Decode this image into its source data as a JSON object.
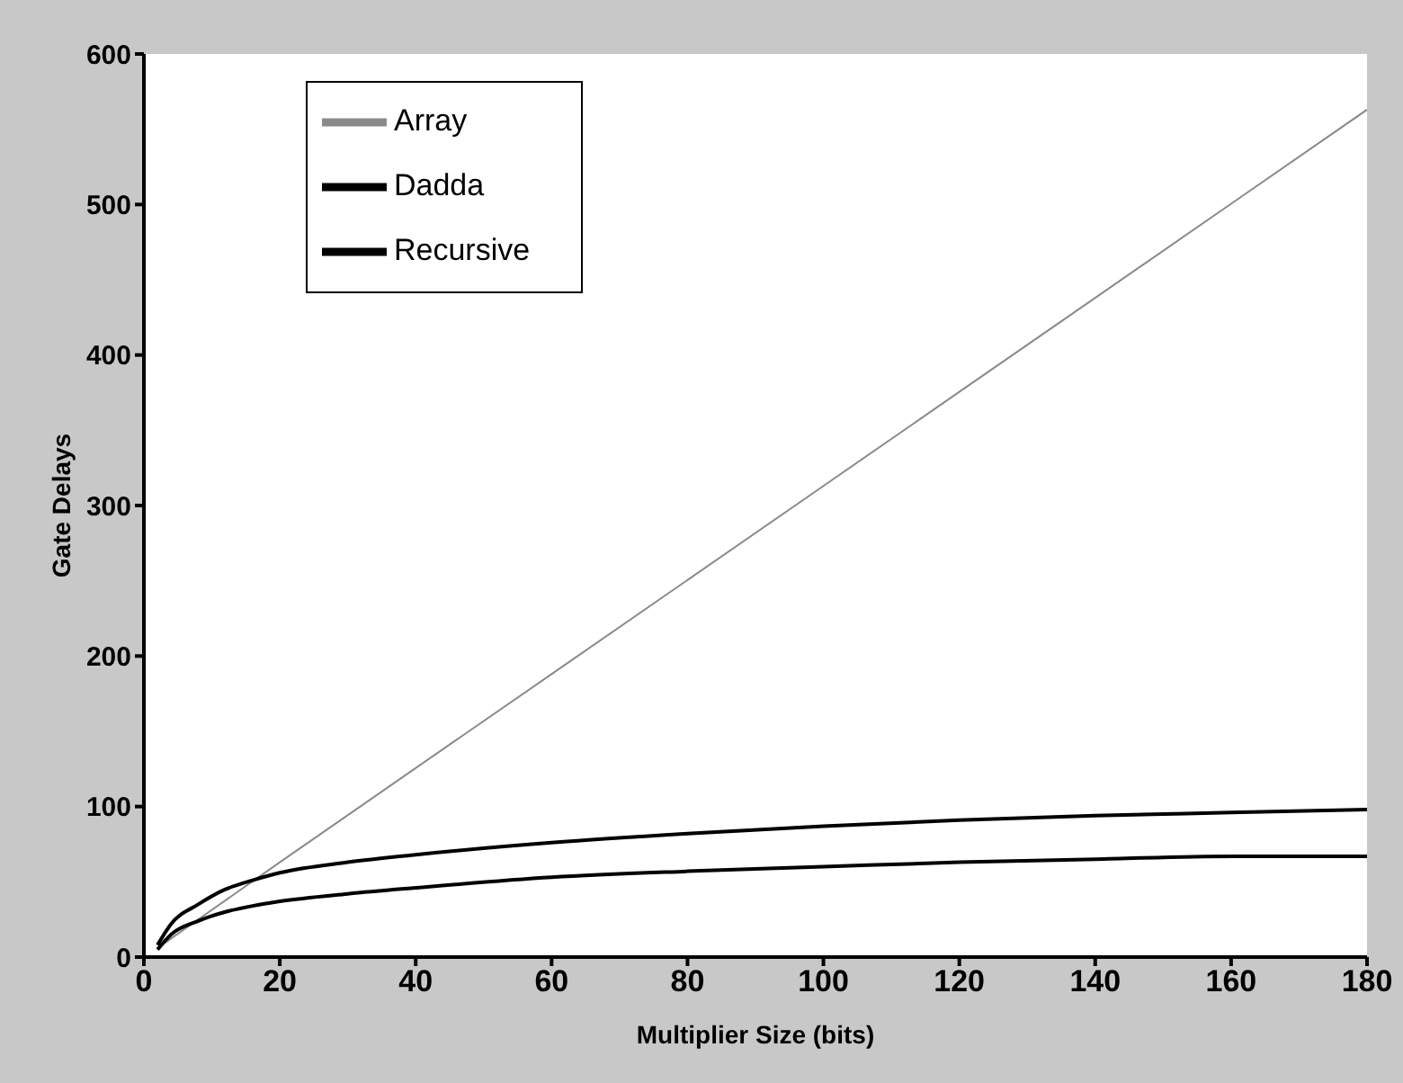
{
  "chart_data": {
    "type": "line",
    "xlabel": "Multiplier Size (bits)",
    "ylabel": "Gate Delays",
    "xlim": [
      0,
      180
    ],
    "ylim": [
      0,
      600
    ],
    "xticks": [
      0,
      20,
      40,
      60,
      80,
      100,
      120,
      140,
      160,
      180
    ],
    "yticks": [
      0,
      100,
      200,
      300,
      400,
      500,
      600
    ],
    "grid": false,
    "legend": "top left",
    "marker": "none",
    "line_style": "solid",
    "series": [
      {
        "name": "Array",
        "color": "#8a8a8a",
        "x": [
          2,
          20,
          60,
          100,
          140,
          180
        ],
        "values": [
          6,
          63,
          188,
          313,
          438,
          563
        ]
      },
      {
        "name": "Dadda",
        "color": "#000000",
        "x": [
          2,
          4,
          8,
          12,
          16,
          20,
          30,
          40,
          60,
          80,
          100,
          120,
          140,
          160,
          180
        ],
        "values": [
          5,
          15,
          24,
          30,
          34,
          37,
          42,
          46,
          53,
          57,
          60,
          63,
          65,
          67,
          67
        ]
      },
      {
        "name": "Recursive",
        "color": "#000000",
        "x": [
          2,
          4,
          8,
          12,
          16,
          20,
          30,
          40,
          60,
          80,
          100,
          120,
          140,
          160,
          180
        ],
        "values": [
          8,
          22,
          35,
          45,
          51,
          56,
          63,
          68,
          76,
          82,
          87,
          91,
          94,
          96,
          98
        ]
      }
    ]
  }
}
